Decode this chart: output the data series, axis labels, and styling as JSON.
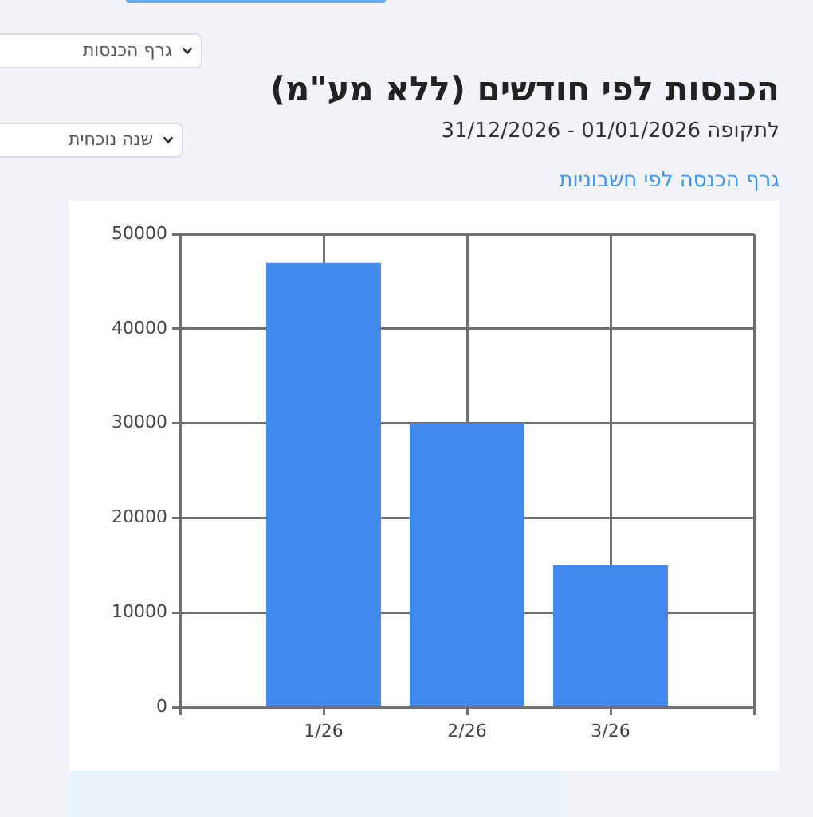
{
  "chart_data": {
    "type": "bar",
    "title": "הכנסות לפי חודשים (ללא מע\"מ)",
    "subtitle": "לתקופה 01/01/2026 - 31/12/2026",
    "annotations": [
      "גרף הכנסה לפי חשבוניות",
      "גרף הכנסות",
      "שנה נוכחית"
    ],
    "categories": [
      null,
      "1/26",
      "2/26",
      "3/26",
      null
    ],
    "values": [
      null,
      47000,
      30000,
      15000,
      null
    ],
    "color": "#4189ec",
    "ylim": [
      0,
      50000
    ],
    "yticks": [
      0,
      10000,
      20000,
      30000,
      40000,
      50000
    ],
    "grid": true
  }
}
